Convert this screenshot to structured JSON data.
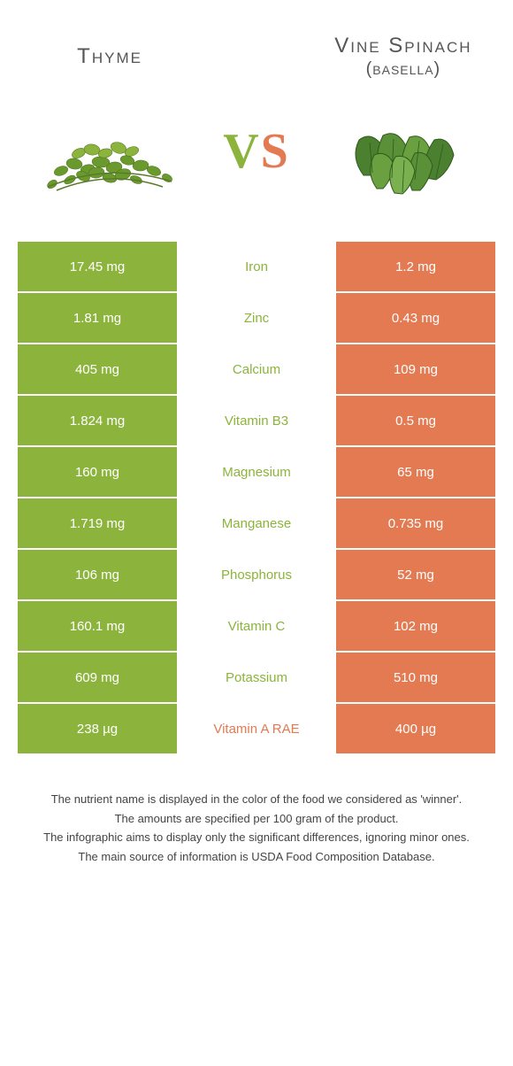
{
  "header": {
    "left_title": "Thyme",
    "right_title": "Vine Spinach",
    "right_subtitle": "(basella)",
    "vs_v": "V",
    "vs_s": "S"
  },
  "colors": {
    "left": "#8cb43c",
    "right": "#e37a52",
    "mid_left_text": "#8cb43c",
    "mid_right_text": "#e37a52"
  },
  "rows": [
    {
      "left": "17.45 mg",
      "label": "Iron",
      "right": "1.2 mg",
      "winner": "left"
    },
    {
      "left": "1.81 mg",
      "label": "Zinc",
      "right": "0.43 mg",
      "winner": "left"
    },
    {
      "left": "405 mg",
      "label": "Calcium",
      "right": "109 mg",
      "winner": "left"
    },
    {
      "left": "1.824 mg",
      "label": "Vitamin B3",
      "right": "0.5 mg",
      "winner": "left"
    },
    {
      "left": "160 mg",
      "label": "Magnesium",
      "right": "65 mg",
      "winner": "left"
    },
    {
      "left": "1.719 mg",
      "label": "Manganese",
      "right": "0.735 mg",
      "winner": "left"
    },
    {
      "left": "106 mg",
      "label": "Phosphorus",
      "right": "52 mg",
      "winner": "left"
    },
    {
      "left": "160.1 mg",
      "label": "Vitamin C",
      "right": "102 mg",
      "winner": "left"
    },
    {
      "left": "609 mg",
      "label": "Potassium",
      "right": "510 mg",
      "winner": "left"
    },
    {
      "left": "238 µg",
      "label": "Vitamin A RAE",
      "right": "400 µg",
      "winner": "right"
    }
  ],
  "footer": {
    "line1": "The nutrient name is displayed in the color of the food we considered as 'winner'.",
    "line2": "The amounts are specified per 100 gram of the product.",
    "line3": "The infographic aims to display only the significant differences, ignoring minor ones.",
    "line4": "The main source of information is USDA Food Composition Database."
  }
}
